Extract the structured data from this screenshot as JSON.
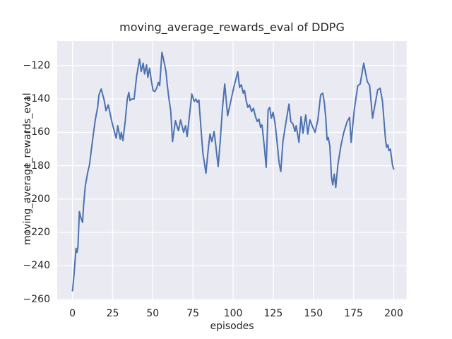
{
  "style": {
    "figure_background": "#ffffff",
    "axes_background": "#eaeaf2",
    "grid_color": "#ffffff",
    "line_color": "#4c72b0",
    "text_color": "#262626"
  },
  "chart_data": {
    "type": "line",
    "title": "moving_average_rewards_eval of DDPG",
    "xlabel": "episodes",
    "ylabel": "moving_average_rewards_eval",
    "grid": true,
    "legend": null,
    "x_ticks": [
      0,
      25,
      50,
      75,
      100,
      125,
      150,
      175,
      200
    ],
    "x_tick_labels": [
      "0",
      "25",
      "50",
      "75",
      "100",
      "125",
      "150",
      "175",
      "200"
    ],
    "y_ticks": [
      -120,
      -140,
      -160,
      -180,
      -200,
      -220,
      -240,
      -260
    ],
    "y_tick_labels": [
      "−120",
      "−140",
      "−160",
      "−180",
      "−200",
      "−220",
      "−240",
      "−260"
    ],
    "xlim": [
      -9.5,
      208
    ],
    "ylim": [
      -260.6,
      -105.2
    ],
    "series": [
      {
        "name": "moving_average_rewards_eval",
        "color": "#4c72b0",
        "x": [
          0,
          1,
          2.2,
          2.8,
          3.4,
          4.3,
          5.3,
          6.3,
          7,
          8,
          9.5,
          10.6,
          12,
          13,
          14.3,
          15.7,
          16.5,
          17.9,
          19.7,
          20.9,
          22.3,
          24.5,
          26.5,
          27.2,
          28.2,
          29.7,
          30.4,
          31.4,
          32.9,
          34.1,
          35.1,
          35.8,
          36.7,
          38.4,
          39.9,
          41.7,
          42.8,
          44,
          44.9,
          46.1,
          46.9,
          48,
          49,
          50.2,
          51.3,
          52.4,
          53.5,
          54.3,
          55.7,
          56.4,
          57.2,
          58.2,
          59,
          60.1,
          61.2,
          62.3,
          64.1,
          66,
          67.3,
          69.2,
          70.4,
          71.4,
          74.3,
          75.8,
          76.8,
          77.7,
          78.7,
          80.2,
          81.2,
          83.1,
          84.6,
          85.6,
          86.8,
          88.2,
          89.1,
          90.7,
          91.9,
          93.4,
          94.8,
          96.6,
          97.8,
          99.2,
          100.7,
          102.9,
          104,
          105.1,
          106.3,
          107.1,
          108.2,
          109.2,
          110.2,
          111.5,
          112.7,
          113.9,
          115,
          116.1,
          117.1,
          118,
          119.6,
          120.6,
          121.8,
          122.8,
          123.8,
          124.9,
          126.2,
          127.4,
          128.6,
          129.7,
          131,
          132.9,
          134.8,
          135.9,
          137.3,
          138.5,
          139.3,
          141,
          142.3,
          143.5,
          145.2,
          146.5,
          147.8,
          149.2,
          151,
          152.8,
          154.5,
          155.8,
          156.8,
          157.7,
          158.5,
          159.2,
          160.2,
          161.2,
          162,
          163,
          163.9,
          165.2,
          167.1,
          168.8,
          171,
          172.5,
          173.5,
          175.4,
          177.6,
          179.1,
          181.3,
          183.5,
          185,
          186.8,
          190,
          191.5,
          193,
          194,
          195,
          195.6,
          196.4,
          197,
          197.9,
          198.6,
          199.3,
          200
        ],
        "y": [
          -255,
          -245,
          -229.5,
          -232,
          -229,
          -207.5,
          -211.5,
          -214,
          -203,
          -192,
          -184,
          -179.5,
          -168.5,
          -161,
          -152,
          -145,
          -137.5,
          -134,
          -140.5,
          -147,
          -143.5,
          -153.5,
          -161,
          -163.5,
          -156,
          -164,
          -160,
          -165,
          -153,
          -140,
          -136,
          -141,
          -140,
          -140,
          -126.5,
          -116,
          -123.5,
          -118.5,
          -125,
          -119.5,
          -127,
          -121.5,
          -128.5,
          -135,
          -135.5,
          -133.5,
          -130,
          -132,
          -112,
          -115,
          -118.5,
          -123.5,
          -131.5,
          -140,
          -147.5,
          -165.5,
          -153,
          -159,
          -152.5,
          -160,
          -156,
          -162.5,
          -137,
          -141.5,
          -140,
          -142,
          -140.5,
          -160,
          -172.5,
          -184.5,
          -169.5,
          -161,
          -165.5,
          -159.5,
          -167,
          -180.5,
          -166.5,
          -145.5,
          -131,
          -150,
          -144.5,
          -138.5,
          -132,
          -123.7,
          -133,
          -131.4,
          -136.5,
          -134.8,
          -141.3,
          -145,
          -143.5,
          -147.5,
          -145.5,
          -150.5,
          -153.5,
          -152,
          -157,
          -155.5,
          -170,
          -181,
          -146.5,
          -145,
          -151.5,
          -148,
          -155,
          -166,
          -178,
          -183.5,
          -165.5,
          -154,
          -143,
          -153.5,
          -155,
          -159.5,
          -156,
          -166,
          -150.5,
          -160.5,
          -149.5,
          -161,
          -152.5,
          -156,
          -160,
          -152.5,
          -137.5,
          -136.5,
          -142,
          -151.5,
          -164.5,
          -163,
          -168,
          -186.5,
          -191.5,
          -185,
          -193,
          -179.5,
          -168,
          -160.5,
          -153.5,
          -151,
          -166,
          -146.5,
          -132,
          -131,
          -118.5,
          -129.5,
          -132,
          -151.5,
          -134.5,
          -133.5,
          -141.5,
          -154,
          -165.5,
          -169,
          -167.5,
          -171,
          -170,
          -175,
          -180,
          -182
        ]
      }
    ]
  }
}
